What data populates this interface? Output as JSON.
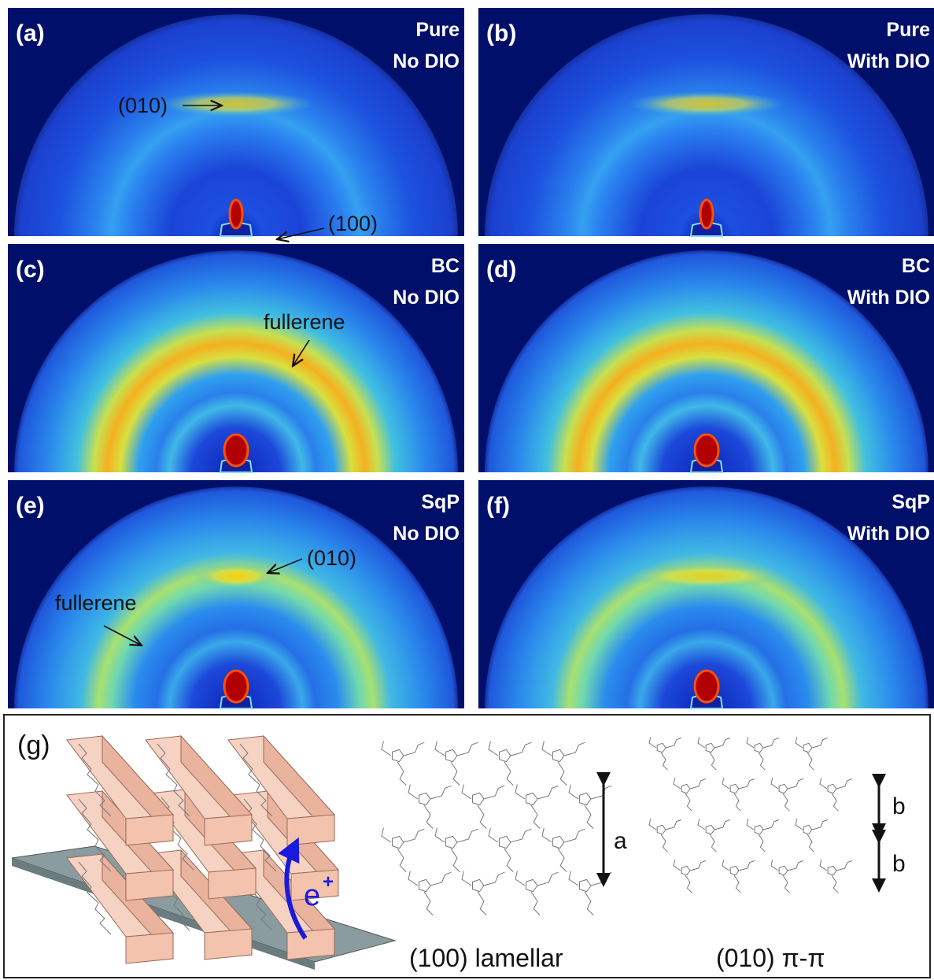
{
  "panels": [
    {
      "label": "(a)",
      "title": [
        "Pure",
        "No DIO"
      ],
      "annotations": [
        "(010)",
        "(100)"
      ]
    },
    {
      "label": "(b)",
      "title": [
        "Pure",
        "With DIO"
      ],
      "annotations": []
    },
    {
      "label": "(c)",
      "title": [
        "BC",
        "No DIO"
      ],
      "annotations": [
        "fullerene"
      ]
    },
    {
      "label": "(d)",
      "title": [
        "BC",
        "With DIO"
      ],
      "annotations": []
    },
    {
      "label": "(e)",
      "title": [
        "SqP",
        "No DIO"
      ],
      "annotations": [
        "(010)",
        "fullerene"
      ]
    },
    {
      "label": "(f)",
      "title": [
        "SqP",
        "With DIO"
      ],
      "annotations": []
    }
  ],
  "panel_g": {
    "label": "(g)",
    "carrier": "e",
    "carrier_charge": "+",
    "lamellar_spacing": "a",
    "pi_spacings": [
      "b",
      "b"
    ],
    "lamellar_caption": "(100) lamellar",
    "pi_caption": "(010) π-π"
  }
}
